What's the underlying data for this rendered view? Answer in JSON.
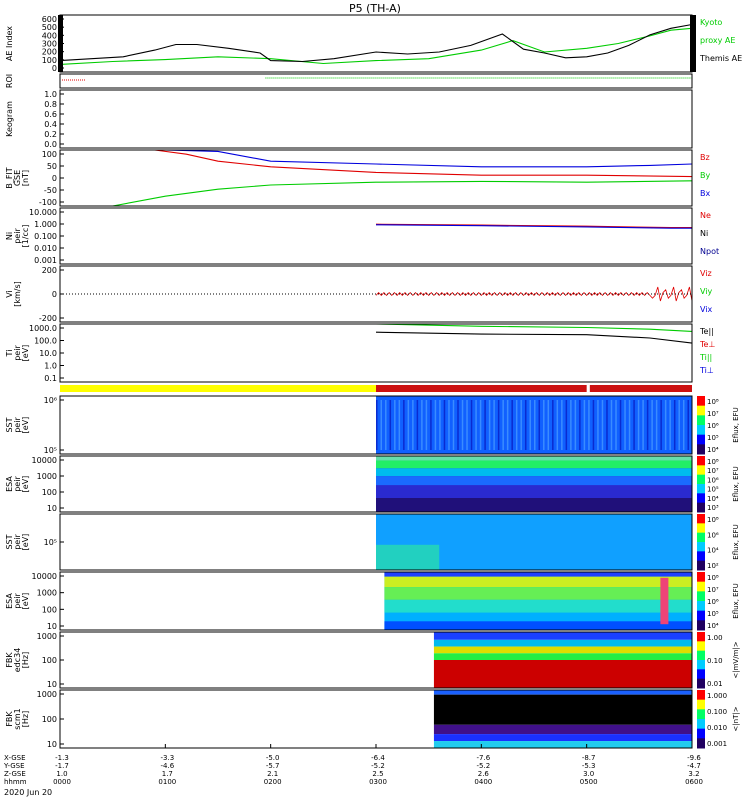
{
  "title": "P5 (TH-A)",
  "date_label": "2020 Jun 20",
  "colors": {
    "red": "#e00000",
    "green": "#00cc00",
    "blue": "#0000dd",
    "black": "#000000",
    "navy": "#000090",
    "yellow": "#ffff00",
    "crimson": "#cc1010"
  },
  "panels": [
    {
      "key": "ae",
      "ylabel": [
        "AE Index"
      ],
      "ticks": [
        "600",
        "500",
        "400",
        "300",
        "200",
        "100",
        "0"
      ],
      "legend": [
        {
          "text": "Kyoto",
          "color": "green"
        },
        {
          "text": "proxy AE",
          "color": "green"
        },
        {
          "text": "Themis AE",
          "color": "black"
        }
      ]
    },
    {
      "key": "roi",
      "ylabel": [
        "ROI"
      ],
      "ticks": [],
      "legend": []
    },
    {
      "key": "keo",
      "ylabel": [
        "Keogram"
      ],
      "ticks": [
        "1.0",
        "0.8",
        "0.6",
        "0.4",
        "0.2",
        "0.0"
      ],
      "legend": []
    },
    {
      "key": "bfit",
      "ylabel": [
        "B_FIT",
        "GSE",
        "[nT]"
      ],
      "ticks": [
        "100",
        "50",
        "0",
        "-50",
        "-100"
      ],
      "legend": [
        {
          "text": "Bz",
          "color": "red"
        },
        {
          "text": "By",
          "color": "green"
        },
        {
          "text": "Bx",
          "color": "blue"
        }
      ]
    },
    {
      "key": "ni",
      "ylabel": [
        "Ni",
        "peir",
        "[1/cc]"
      ],
      "ticks": [
        "10.000",
        "1.000",
        "0.100",
        "0.010",
        "0.001"
      ],
      "legend": [
        {
          "text": "Ne",
          "color": "red"
        },
        {
          "text": "Ni",
          "color": "black"
        },
        {
          "text": "Npot",
          "color": "navy"
        }
      ]
    },
    {
      "key": "vi",
      "ylabel": [
        "Vi",
        "[km/s]"
      ],
      "ticks": [
        "200",
        "0",
        "-200"
      ],
      "legend": [
        {
          "text": "Viz",
          "color": "red"
        },
        {
          "text": "Viy",
          "color": "green"
        },
        {
          "text": "Vix",
          "color": "blue"
        }
      ]
    },
    {
      "key": "ti",
      "ylabel": [
        "Ti",
        "peir",
        "[eV]"
      ],
      "ticks": [
        "1000.0",
        "100.0",
        "10.0",
        "1.0",
        "0.1"
      ],
      "legend": [
        {
          "text": "Te||",
          "color": "black"
        },
        {
          "text": "Te⊥",
          "color": "red"
        },
        {
          "text": "Ti||",
          "color": "green"
        },
        {
          "text": "Ti⊥",
          "color": "blue"
        }
      ]
    },
    {
      "key": "sst_e",
      "ylabel": [
        "SST",
        "peir",
        "[eV]"
      ],
      "ticks": [
        "10⁶",
        "10⁵"
      ],
      "legend": [],
      "cbar": [
        "10⁸",
        "10⁷",
        "10⁶",
        "10⁵",
        "10⁴"
      ],
      "cbar_label": "Eflux, EFU"
    },
    {
      "key": "esa_e",
      "ylabel": [
        "ESA",
        "peir",
        "[eV]"
      ],
      "ticks": [
        "10000",
        "1000",
        "100",
        "10"
      ],
      "legend": [],
      "cbar": [
        "10⁸",
        "10⁷",
        "10⁶",
        "10⁵",
        "10⁴",
        "10³"
      ],
      "cbar_label": "Eflux, EFU"
    },
    {
      "key": "sst_i",
      "ylabel": [
        "SST",
        "peir",
        "[eV]"
      ],
      "ticks": [
        "10⁵"
      ],
      "legend": [],
      "cbar": [
        "10⁸",
        "10⁶",
        "10⁴",
        "10²"
      ],
      "cbar_label": "Eflux, EFU"
    },
    {
      "key": "esa_i",
      "ylabel": [
        "ESA",
        "peir",
        "[eV]"
      ],
      "ticks": [
        "10000",
        "1000",
        "100",
        "10"
      ],
      "legend": [],
      "cbar": [
        "10⁸",
        "10⁷",
        "10⁶",
        "10⁵",
        "10⁴"
      ],
      "cbar_label": "Eflux, EFU"
    },
    {
      "key": "fbk1",
      "ylabel": [
        "FBK",
        "edc34",
        "[Hz]"
      ],
      "ticks": [
        "1000",
        "100",
        "10"
      ],
      "legend": [],
      "cbar": [
        "1.00",
        "0.10",
        "0.01"
      ],
      "cbar_label": "<|mV/m|>"
    },
    {
      "key": "fbk2",
      "ylabel": [
        "FBK",
        "scm1",
        "[Hz]"
      ],
      "ticks": [
        "1000",
        "100",
        "10"
      ],
      "legend": [],
      "cbar": [
        "1.000",
        "0.100",
        "0.010",
        "0.001"
      ],
      "cbar_label": "<|nT|>"
    }
  ],
  "x_axis": {
    "row_labels": [
      "X-GSE",
      "Y-GSE",
      "Z-GSE",
      "hhmm"
    ],
    "columns": [
      {
        "values": [
          "-1.3",
          "-1.7",
          "1.0",
          "0000"
        ]
      },
      {
        "values": [
          "-3.3",
          "-4.6",
          "1.7",
          "0100"
        ]
      },
      {
        "values": [
          "-5.0",
          "-5.7",
          "2.1",
          "0200"
        ]
      },
      {
        "values": [
          "-6.4",
          "-5.2",
          "2.5",
          "0300"
        ]
      },
      {
        "values": [
          "-7.6",
          "-5.2",
          "2.6",
          "0400"
        ]
      },
      {
        "values": [
          "-8.7",
          "-5.3",
          "3.0",
          "0500"
        ]
      },
      {
        "values": [
          "-9.6",
          "-4.7",
          "3.2",
          "0600"
        ]
      }
    ]
  },
  "chart_data": {
    "type": "line",
    "time_hours": [
      0,
      1,
      2,
      3,
      4,
      5,
      6
    ],
    "themis_ae": {
      "t": [
        0,
        0.3,
        0.6,
        0.9,
        1.1,
        1.3,
        1.6,
        1.9,
        2.0,
        2.3,
        2.6,
        3.0,
        3.3,
        3.6,
        3.9,
        4.2,
        4.4,
        4.6,
        4.8,
        5.0,
        5.2,
        5.4,
        5.6,
        5.8,
        6.0
      ],
      "v": [
        120,
        140,
        160,
        230,
        290,
        290,
        250,
        200,
        120,
        110,
        140,
        210,
        190,
        210,
        280,
        400,
        240,
        200,
        150,
        160,
        200,
        280,
        390,
        460,
        500
      ]
    },
    "kyoto_ae": {
      "t": [
        0,
        0.5,
        1.0,
        1.5,
        2.0,
        2.5,
        3.0,
        3.5,
        4.0,
        4.3,
        4.6,
        5.0,
        5.3,
        5.6,
        5.8,
        6.0
      ],
      "v": [
        80,
        110,
        130,
        160,
        140,
        90,
        120,
        140,
        230,
        330,
        210,
        250,
        300,
        380,
        440,
        460
      ]
    },
    "b_fit": {
      "bz": {
        "t": [
          0.9,
          1.2,
          1.5,
          2.0,
          3.0,
          4.0,
          5.0,
          6.0
        ],
        "v": [
          100,
          85,
          60,
          40,
          20,
          10,
          10,
          5
        ]
      },
      "by": {
        "t": [
          0.5,
          1.0,
          1.5,
          2.0,
          3.0,
          4.0,
          5.0,
          6.0
        ],
        "v": [
          -100,
          -65,
          -40,
          -25,
          -15,
          -12,
          -15,
          -10
        ]
      },
      "bx": {
        "t": [
          1.0,
          1.5,
          2.0,
          3.0,
          4.0,
          5.0,
          5.6,
          6.0
        ],
        "v": [
          100,
          95,
          60,
          50,
          40,
          40,
          45,
          50
        ]
      }
    },
    "ni": {
      "t": [
        3.0,
        4.0,
        5.0,
        5.8,
        6.0
      ],
      "v": [
        0.7,
        0.6,
        0.5,
        0.4,
        0.4
      ]
    },
    "ti": {
      "te_par": {
        "t": [
          3.0,
          4.0,
          5.0,
          5.6,
          6.0
        ],
        "v": [
          700,
          500,
          450,
          250,
          100
        ]
      },
      "ti_par": {
        "t": [
          3.0,
          4.0,
          5.0,
          5.6,
          6.0
        ],
        "v": [
          3000,
          2000,
          1600,
          1200,
          800
        ]
      }
    }
  }
}
